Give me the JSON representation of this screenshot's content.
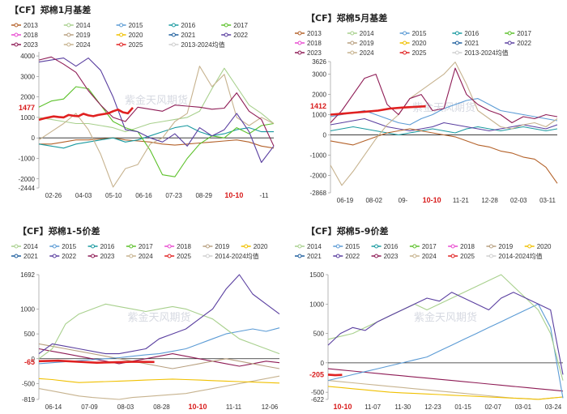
{
  "watermark": "紫金天风期货",
  "colors": {
    "2013": "#b4622a",
    "2014": "#a8d08d",
    "2015": "#5b9bd5",
    "2016": "#1a9aa0",
    "2017": "#5cc12a",
    "2018": "#e84ad0",
    "2019": "#b8a080",
    "2020": "#f0c000",
    "2021": "#1f5f9e",
    "2022": "#5a3fa0",
    "2023": "#8e1b55",
    "2024": "#c7b38f",
    "2025": "#e02020",
    "avg": "#cfcfcf"
  },
  "chart_data": [
    {
      "type": "line",
      "title": "【CF】郑棉1月基差",
      "legend": [
        "2013",
        "2014",
        "2015",
        "2016",
        "2017",
        "2018",
        "2019",
        "2020",
        "2021",
        "2022",
        "2023",
        "2024",
        "2025",
        "2013-2024均值"
      ],
      "yticks": [
        4000,
        3000,
        2000,
        1000,
        0,
        -1000,
        -2000,
        -2444
      ],
      "ylim": [
        -2444,
        4200
      ],
      "highlight_value": "1477",
      "xticks": [
        "02-26",
        "04-03",
        "05-10",
        "06-16",
        "07-23",
        "08-29",
        "10-10",
        "-11"
      ],
      "highlight_x": "10-10",
      "series": [
        {
          "name": "2025",
          "values": [
            880,
            950,
            1000,
            1050,
            1020,
            1000,
            1120,
            1080,
            1060,
            1180,
            1100,
            1060,
            1120,
            1160,
            1200,
            1300,
            1380,
            1250,
            1200,
            1477
          ]
        },
        {
          "name": "2023",
          "values": [
            3800,
            3950,
            3600,
            3200,
            2300,
            1600,
            1000,
            800,
            1500,
            1400,
            1300,
            1600,
            1550,
            1500,
            1400,
            1450,
            2200,
            1300,
            900,
            -400
          ]
        },
        {
          "name": "2022",
          "values": [
            3700,
            3800,
            3900,
            3500,
            3900,
            3300,
            2000,
            400,
            300,
            0,
            -200,
            200,
            -400,
            500,
            100,
            400,
            1200,
            300,
            -1200,
            -400
          ]
        },
        {
          "name": "2024",
          "values": [
            -100,
            300,
            700,
            1200,
            400,
            -800,
            -2400,
            -1500,
            -1300,
            -300,
            0,
            800,
            1200,
            3500,
            2500,
            3100,
            1000,
            600,
            1000,
            700
          ]
        },
        {
          "name": "2017",
          "values": [
            1500,
            1800,
            1900,
            2500,
            2400,
            1600,
            800,
            500,
            300,
            -600,
            -1800,
            -1900,
            -1000,
            -300,
            100,
            0,
            500,
            200,
            600,
            700
          ]
        },
        {
          "name": "2014",
          "values": [
            1000,
            900,
            800,
            700,
            700,
            600,
            500,
            300,
            500,
            700,
            800,
            900,
            1000,
            1300,
            2400,
            3400,
            2500,
            1600,
            1200,
            700
          ]
        },
        {
          "name": "2016",
          "values": [
            -300,
            -400,
            -500,
            -300,
            -200,
            -100,
            0,
            -200,
            -100,
            100,
            300,
            500,
            600,
            300,
            100,
            200,
            400,
            500,
            300,
            300
          ]
        },
        {
          "name": "2013",
          "values": [
            -300,
            -300,
            -200,
            -100,
            -100,
            -50,
            0,
            -100,
            -150,
            -200,
            -300,
            -350,
            -300,
            -250,
            -200,
            -150,
            -100,
            -200,
            -400,
            -500
          ]
        }
      ]
    },
    {
      "type": "line",
      "title": "【CF】郑棉5月基差",
      "legend": [
        "2013",
        "2014",
        "2015",
        "2016",
        "2017",
        "2018",
        "2019",
        "2020",
        "2021",
        "2022",
        "2023",
        "2024",
        "2025",
        "2013-2024均值"
      ],
      "yticks": [
        3626,
        3000,
        2000,
        1000,
        0,
        -1000,
        -2000,
        -2868
      ],
      "ylim": [
        -2868,
        3626
      ],
      "highlight_value": "1412",
      "xticks": [
        "06-19",
        "08-02",
        "09-",
        "10-10",
        "11-21",
        "12-28",
        "02-03",
        "03-11"
      ],
      "highlight_x": "10-10",
      "series": [
        {
          "name": "2025",
          "values": [
            1000,
            1050,
            1100,
            1150,
            1200,
            1300,
            1350,
            1380,
            1412
          ]
        },
        {
          "name": "2023",
          "values": [
            600,
            1200,
            2000,
            2800,
            3000,
            1500,
            1000,
            1800,
            2000,
            1200,
            1300,
            3300,
            2000,
            1500,
            1200,
            1000,
            600,
            900,
            800,
            1000,
            900
          ]
        },
        {
          "name": "2024",
          "values": [
            -1500,
            -2500,
            -1800,
            -1000,
            -200,
            500,
            1000,
            1800,
            2200,
            2600,
            3000,
            3600,
            2500,
            1200,
            800,
            400,
            300,
            500,
            600,
            400,
            800
          ]
        },
        {
          "name": "2013",
          "values": [
            -300,
            -400,
            -500,
            -300,
            -100,
            100,
            200,
            300,
            200,
            100,
            0,
            -100,
            -300,
            -500,
            -600,
            -800,
            -900,
            -1100,
            -1200,
            -1600,
            -2400
          ]
        },
        {
          "name": "2015",
          "values": [
            900,
            1000,
            1100,
            1200,
            1000,
            800,
            600,
            500,
            800,
            1000,
            1300,
            1500,
            1700,
            1800,
            1500,
            1200,
            1100,
            1000,
            900,
            800,
            700
          ]
        },
        {
          "name": "2022",
          "values": [
            500,
            600,
            700,
            800,
            600,
            400,
            300,
            200,
            300,
            400,
            600,
            500,
            400,
            300,
            200,
            300,
            400,
            500,
            400,
            300,
            500
          ]
        },
        {
          "name": "2016",
          "values": [
            200,
            300,
            400,
            300,
            200,
            100,
            0,
            100,
            200,
            300,
            200,
            100,
            300,
            400,
            300,
            200,
            300,
            400,
            300,
            200,
            300
          ]
        }
      ]
    },
    {
      "type": "line",
      "title": "【CF】郑棉1-5价差",
      "legend": [
        "2014",
        "2015",
        "2016",
        "2017",
        "2018",
        "2019",
        "2020",
        "2021",
        "2022",
        "2023",
        "2024",
        "2025",
        "2014-2024均值"
      ],
      "yticks": [
        1692,
        1000,
        500,
        0,
        -500,
        -819
      ],
      "ylim": [
        -819,
        1692
      ],
      "highlight_value": "-65",
      "xticks": [
        "06-14",
        "07-09",
        "08-03",
        "08-28",
        "10-10",
        "11-11",
        "12-06"
      ],
      "highlight_x": "10-10",
      "series": [
        {
          "name": "2025",
          "values": [
            -50,
            -40,
            -60,
            -80,
            -70,
            -60,
            -65
          ]
        },
        {
          "name": "2022",
          "values": [
            100,
            300,
            250,
            200,
            150,
            100,
            100,
            150,
            200,
            400,
            500,
            600,
            800,
            1000,
            1400,
            1692,
            1300,
            1100,
            900
          ]
        },
        {
          "name": "2014",
          "values": [
            0,
            200,
            700,
            900,
            1000,
            1100,
            1050,
            1000,
            950,
            1000,
            1050,
            1000,
            900,
            800,
            600,
            400,
            300,
            200,
            100
          ]
        },
        {
          "name": "2015",
          "values": [
            -100,
            -80,
            -60,
            -40,
            -20,
            0,
            20,
            50,
            80,
            100,
            150,
            200,
            300,
            400,
            500,
            550,
            600,
            550,
            620
          ]
        },
        {
          "name": "2020",
          "values": [
            -400,
            -420,
            -450,
            -480,
            -470,
            -460,
            -450,
            -440,
            -430,
            -420,
            -410,
            -420,
            -430,
            -440,
            -450,
            -460,
            -470,
            -480,
            -490
          ]
        },
        {
          "name": "2024",
          "values": [
            -600,
            -650,
            -700,
            -750,
            -780,
            -800,
            -819,
            -780,
            -760,
            -740,
            -720,
            -700,
            -650,
            -600,
            -550,
            -500,
            -450,
            -400,
            -350
          ]
        },
        {
          "name": "2019",
          "values": [
            300,
            250,
            200,
            150,
            100,
            50,
            0,
            -50,
            -100,
            -150,
            -200,
            -150,
            -100,
            -50,
            0,
            -50,
            -100,
            -150,
            -200
          ]
        },
        {
          "name": "2023",
          "values": [
            200,
            150,
            100,
            50,
            0,
            -50,
            -100,
            -50,
            0,
            50,
            100,
            50,
            0,
            -50,
            -100,
            -150,
            -100,
            -50,
            -80
          ]
        }
      ]
    },
    {
      "type": "line",
      "title": "【CF】郑棉5-9价差",
      "legend": [
        "2014",
        "2015",
        "2016",
        "2017",
        "2018",
        "2019",
        "2020",
        "2021",
        "2022",
        "2023",
        "2024",
        "2025",
        "2014-2024均值"
      ],
      "yticks": [
        1500,
        1000,
        500,
        0,
        -500,
        -622
      ],
      "ylim": [
        -622,
        1500
      ],
      "highlight_value": "-205",
      "xticks": [
        "10-10",
        "11-07",
        "11-30",
        "12-23",
        "01-15",
        "02-07",
        "03-01",
        "03-24"
      ],
      "highlight_x": "10-10",
      "series": [
        {
          "name": "2025",
          "values": [
            -200,
            -210,
            -205
          ]
        },
        {
          "name": "2022",
          "values": [
            300,
            500,
            600,
            550,
            700,
            800,
            900,
            1000,
            1100,
            1050,
            1200,
            1100,
            1000,
            900,
            1100,
            1200,
            1100,
            1000,
            900,
            -200
          ]
        },
        {
          "name": "2014",
          "values": [
            400,
            450,
            500,
            600,
            700,
            800,
            900,
            1000,
            900,
            1000,
            1100,
            1200,
            1300,
            1400,
            1500,
            1300,
            1100,
            900,
            500,
            -300
          ]
        },
        {
          "name": "2015",
          "values": [
            -300,
            -250,
            -200,
            -150,
            -100,
            -50,
            0,
            50,
            100,
            200,
            300,
            400,
            500,
            600,
            700,
            800,
            900,
            1000,
            600,
            -600
          ]
        },
        {
          "name": "2020",
          "values": [
            -400,
            -420,
            -440,
            -460,
            -480,
            -500,
            -510,
            -520,
            -530,
            -540,
            -550,
            -560,
            -570,
            -580,
            -590,
            -600,
            -610,
            -620,
            -600,
            -580
          ]
        },
        {
          "name": "2023",
          "values": [
            -100,
            -120,
            -140,
            -160,
            -180,
            -200,
            -220,
            -240,
            -260,
            -280,
            -300,
            -320,
            -340,
            -360,
            -380,
            -400,
            -420,
            -440,
            -460,
            -480
          ]
        },
        {
          "name": "2024",
          "values": [
            -300,
            -320,
            -340,
            -360,
            -380,
            -400,
            -420,
            -440,
            -460,
            -480,
            -500,
            -520,
            -540,
            -560,
            -580,
            -600,
            -610,
            -620,
            -600,
            -580
          ]
        }
      ]
    }
  ]
}
